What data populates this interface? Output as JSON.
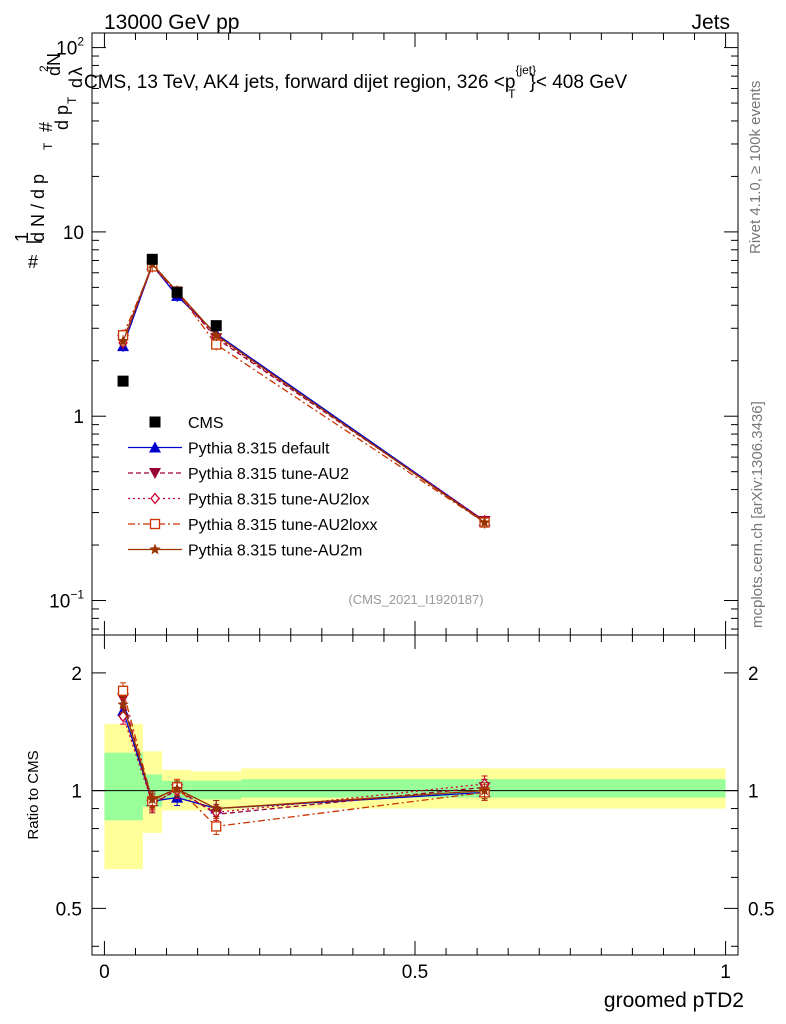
{
  "header": {
    "left": "13000 GeV pp",
    "right": "Jets"
  },
  "side_labels": {
    "rivet": "Rivet 4.1.0, ≥ 100k events",
    "mcplots": "mcplots.cern.ch [arXiv:1306.3436]"
  },
  "colors": {
    "cms": "#000000",
    "default": "#0000cc",
    "au2": "#990033",
    "au2lox": "#cc0033",
    "au2loxx": "#cc3300",
    "au2m": "#993300",
    "band_inner": "#99ff99",
    "band_outer": "#ffff99"
  },
  "chart_data": [
    {
      "type": "scatter",
      "title": "CMS, 13 TeV, AK4 jets, forward dijet region, 326 <p",
      "title_sup": "{jet}",
      "title_sub": "T",
      "title_tail": "}< 408 GeV",
      "ylabel_parts": [
        "#",
        "1",
        "d N / d p",
        "T",
        "#",
        "d p",
        "T",
        "d",
        "2",
        "N",
        "d",
        "λ"
      ],
      "xscale": [
        -0.02,
        1.02
      ],
      "yscale": "log",
      "ylim": [
        0.065,
        120
      ],
      "y_ticks": [
        {
          "value": 0.1,
          "mant": "10",
          "exp": "−1"
        },
        {
          "value": 1,
          "label": "1"
        },
        {
          "value": 10,
          "label": "10"
        },
        {
          "value": 100,
          "mant": "10",
          "exp": "2"
        }
      ],
      "watermark": "(CMS_2021_I1920187)",
      "legend": [
        {
          "key": "cms",
          "label": "CMS"
        },
        {
          "key": "default",
          "label": "Pythia 8.315 default"
        },
        {
          "key": "au2",
          "label": "Pythia 8.315 tune-AU2"
        },
        {
          "key": "au2lox",
          "label": "Pythia 8.315 tune-AU2lox"
        },
        {
          "key": "au2loxx",
          "label": "Pythia 8.315 tune-AU2loxx"
        },
        {
          "key": "au2m",
          "label": "Pythia 8.315 tune-AU2m"
        }
      ],
      "data_points": {
        "x": [
          0.03,
          0.077,
          0.117,
          0.18
        ],
        "y": [
          1.55,
          7.1,
          4.7,
          3.1
        ]
      },
      "series": [
        {
          "key": "default",
          "name": "Pythia 8.315 default",
          "marker": "triangle-up",
          "dash": "",
          "x": [
            0.03,
            0.077,
            0.117,
            0.18,
            0.612
          ],
          "y": [
            2.4,
            6.6,
            4.5,
            2.8,
            0.27
          ]
        },
        {
          "key": "au2",
          "name": "Pythia 8.315 tune-AU2",
          "marker": "triangle-down",
          "dash": "5,3",
          "x": [
            0.03,
            0.077,
            0.117,
            0.18,
            0.612
          ],
          "y": [
            2.6,
            6.5,
            4.7,
            2.65,
            0.27
          ]
        },
        {
          "key": "au2lox",
          "name": "Pythia 8.315 tune-AU2lox",
          "marker": "diamond-open",
          "dash": "2,3",
          "x": [
            0.03,
            0.077,
            0.117,
            0.18,
            0.612
          ],
          "y": [
            2.5,
            6.6,
            4.7,
            2.7,
            0.27
          ]
        },
        {
          "key": "au2loxx",
          "name": "Pythia 8.315 tune-AU2loxx",
          "marker": "square-open",
          "dash": "7,3,2,3",
          "x": [
            0.03,
            0.077,
            0.117,
            0.18,
            0.612
          ],
          "y": [
            2.75,
            6.5,
            4.75,
            2.45,
            0.265
          ]
        },
        {
          "key": "au2m",
          "name": "Pythia 8.315 tune-AU2m",
          "marker": "star",
          "dash": "",
          "x": [
            0.03,
            0.077,
            0.117,
            0.18,
            0.612
          ],
          "y": [
            2.55,
            6.7,
            4.75,
            2.75,
            0.265
          ]
        }
      ]
    },
    {
      "type": "line",
      "ylabel": "Ratio to CMS",
      "xlabel": "groomed pTD2",
      "xlim": [
        -0.02,
        1.02
      ],
      "x_ticks": [
        {
          "value": 0,
          "label": "0"
        },
        {
          "value": 0.5,
          "label": "0.5"
        },
        {
          "value": 1,
          "label": "1"
        }
      ],
      "yscale": "log",
      "ylim": [
        0.38,
        2.5
      ],
      "y_ticks": [
        {
          "value": 0.5,
          "label": "0.5"
        },
        {
          "value": 1,
          "label": "1"
        },
        {
          "value": 2,
          "label": "2"
        }
      ],
      "bands": [
        {
          "x0": 0.0,
          "x1": 0.062,
          "inner": [
            0.84,
            1.25
          ],
          "outer": [
            0.63,
            1.48
          ]
        },
        {
          "x0": 0.062,
          "x1": 0.093,
          "inner": [
            0.91,
            1.1
          ],
          "outer": [
            0.78,
            1.26
          ]
        },
        {
          "x0": 0.093,
          "x1": 0.14,
          "inner": [
            0.95,
            1.06
          ],
          "outer": [
            0.89,
            1.13
          ]
        },
        {
          "x0": 0.14,
          "x1": 0.22,
          "inner": [
            0.95,
            1.06
          ],
          "outer": [
            0.89,
            1.12
          ]
        },
        {
          "x0": 0.22,
          "x1": 1.0,
          "inner": [
            0.96,
            1.07
          ],
          "outer": [
            0.9,
            1.14
          ]
        }
      ],
      "series": [
        {
          "key": "default",
          "x": [
            0.03,
            0.077,
            0.117,
            0.18,
            0.612
          ],
          "y": [
            1.6,
            0.94,
            0.96,
            0.9,
            0.99
          ]
        },
        {
          "key": "au2",
          "x": [
            0.03,
            0.077,
            0.117,
            0.18,
            0.612
          ],
          "y": [
            1.72,
            0.92,
            1.01,
            0.87,
            1.02
          ]
        },
        {
          "key": "au2lox",
          "x": [
            0.03,
            0.077,
            0.117,
            0.18,
            0.612
          ],
          "y": [
            1.55,
            0.93,
            1.0,
            0.88,
            1.04
          ]
        },
        {
          "key": "au2loxx",
          "x": [
            0.03,
            0.077,
            0.117,
            0.18,
            0.612
          ],
          "y": [
            1.8,
            0.94,
            1.02,
            0.81,
            0.99
          ]
        },
        {
          "key": "au2m",
          "x": [
            0.03,
            0.077,
            0.117,
            0.18,
            0.612
          ],
          "y": [
            1.66,
            0.95,
            1.01,
            0.9,
            1.0
          ]
        }
      ]
    }
  ]
}
